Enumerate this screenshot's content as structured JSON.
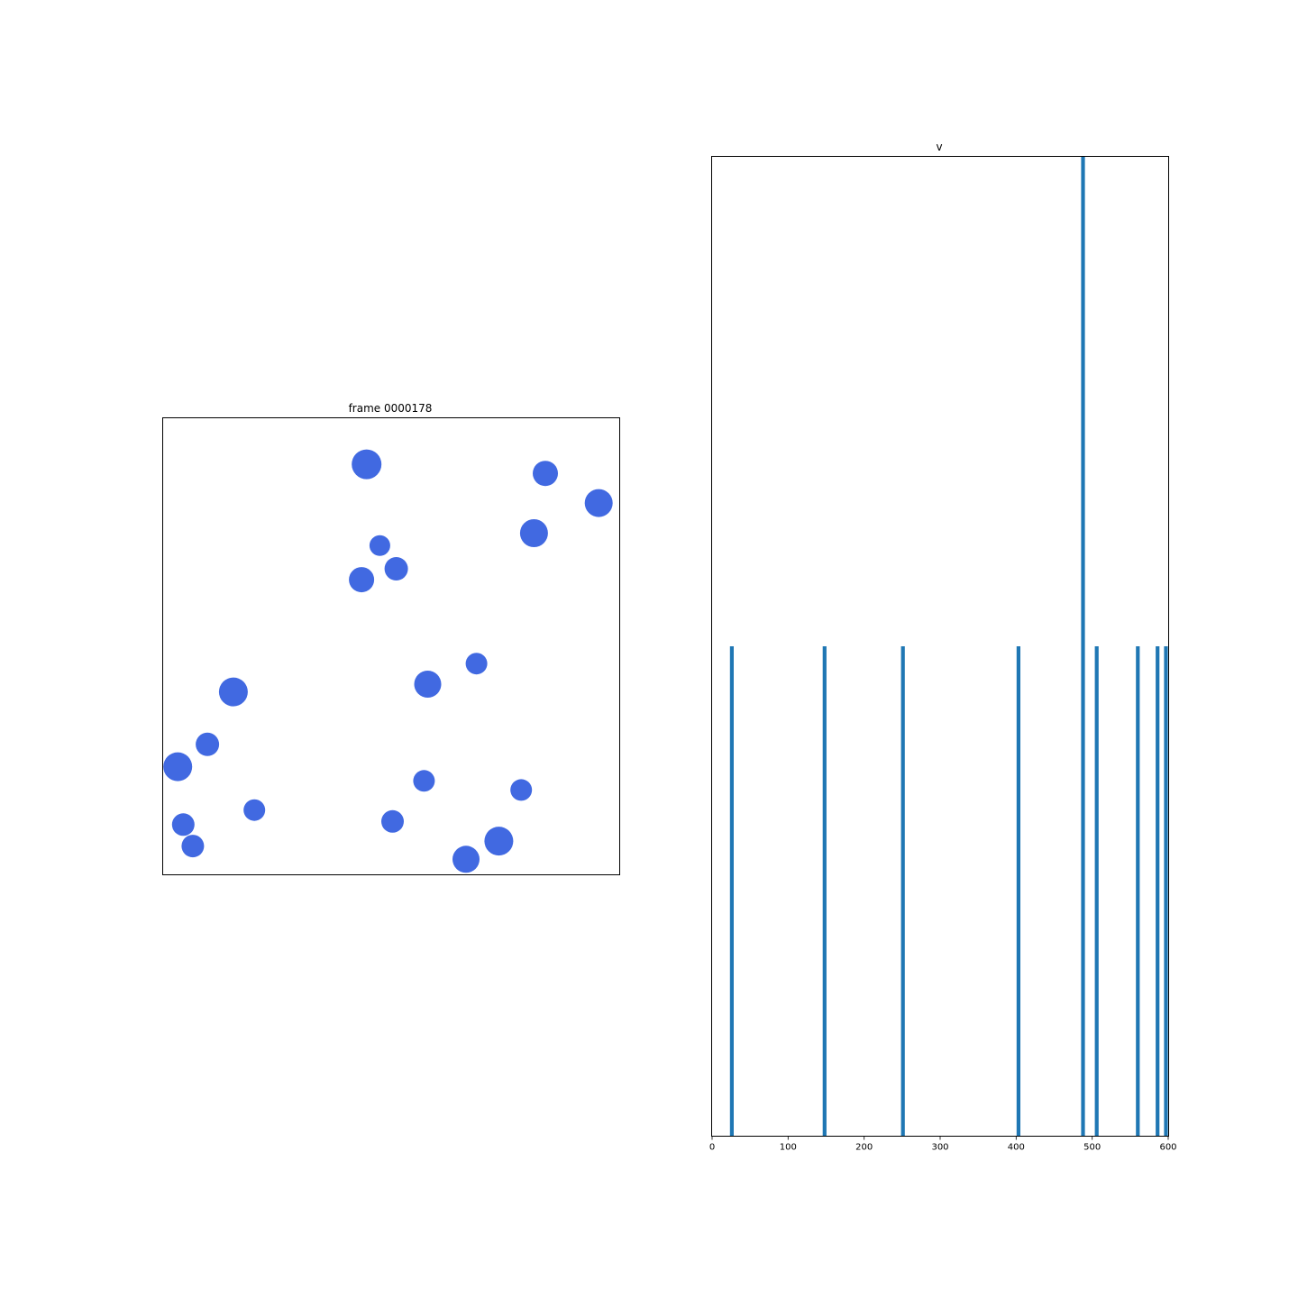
{
  "chart_data": [
    {
      "type": "scatter",
      "title": "frame 0000178",
      "xlim": [
        0,
        1
      ],
      "ylim": [
        0,
        1
      ],
      "ticks_visible": false,
      "marker_color": "#4169e1",
      "points": [
        {
          "x": 0.446,
          "y": 0.899,
          "size": 33
        },
        {
          "x": 0.838,
          "y": 0.879,
          "size": 28
        },
        {
          "x": 0.955,
          "y": 0.814,
          "size": 31
        },
        {
          "x": 0.813,
          "y": 0.748,
          "size": 31
        },
        {
          "x": 0.475,
          "y": 0.721,
          "size": 23
        },
        {
          "x": 0.511,
          "y": 0.67,
          "size": 26
        },
        {
          "x": 0.435,
          "y": 0.646,
          "size": 28
        },
        {
          "x": 0.687,
          "y": 0.462,
          "size": 24
        },
        {
          "x": 0.58,
          "y": 0.417,
          "size": 30
        },
        {
          "x": 0.154,
          "y": 0.4,
          "size": 32
        },
        {
          "x": 0.097,
          "y": 0.285,
          "size": 26
        },
        {
          "x": 0.032,
          "y": 0.236,
          "size": 32
        },
        {
          "x": 0.572,
          "y": 0.205,
          "size": 24
        },
        {
          "x": 0.785,
          "y": 0.185,
          "size": 24
        },
        {
          "x": 0.2,
          "y": 0.141,
          "size": 24
        },
        {
          "x": 0.044,
          "y": 0.109,
          "size": 25
        },
        {
          "x": 0.503,
          "y": 0.116,
          "size": 25
        },
        {
          "x": 0.736,
          "y": 0.073,
          "size": 32
        },
        {
          "x": 0.065,
          "y": 0.062,
          "size": 25
        },
        {
          "x": 0.664,
          "y": 0.033,
          "size": 30
        }
      ]
    },
    {
      "type": "bar",
      "title": "v",
      "xlim": [
        0,
        600
      ],
      "ylim": [
        0,
        2
      ],
      "xticks": [
        "0",
        "100",
        "200",
        "300",
        "400",
        "500",
        "600"
      ],
      "xtick_values": [
        0,
        100,
        200,
        300,
        400,
        500,
        600
      ],
      "yticks_visible": false,
      "bar_color": "#1f77b4",
      "bar_width": 5,
      "x": [
        26,
        148,
        251,
        403,
        488,
        506,
        560,
        586,
        597
      ],
      "values": [
        1,
        1,
        1,
        1,
        2,
        1,
        1,
        1,
        1
      ]
    }
  ]
}
